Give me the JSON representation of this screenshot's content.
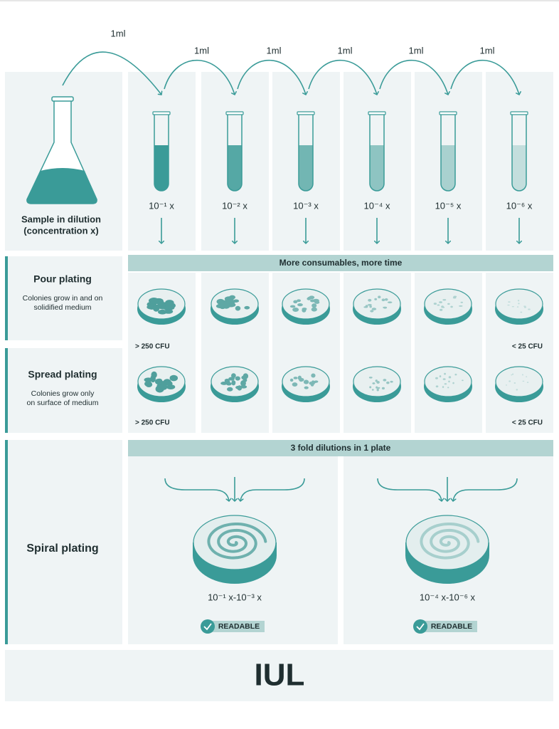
{
  "transfers": [
    "1ml",
    "1ml",
    "1ml",
    "1ml",
    "1ml",
    "1ml"
  ],
  "sample": {
    "lines": [
      "Sample in dilution",
      "(concentration x)"
    ]
  },
  "dilutions": [
    "10⁻¹ x",
    "10⁻² x",
    "10⁻³ x",
    "10⁻⁴ x",
    "10⁻⁵ x",
    "10⁻⁶ x"
  ],
  "banner_top": "More consumables, more time",
  "pour": {
    "title": "Pour plating",
    "lines": [
      "Colonies grow in and on",
      "solidified medium"
    ],
    "high": "> 250 CFU",
    "low": "< 25 CFU"
  },
  "spread": {
    "title": "Spread plating",
    "lines": [
      "Colonies grow only",
      "on surface of medium"
    ],
    "high": "> 250 CFU",
    "low": "< 25 CFU"
  },
  "banner_spiral": "3 fold dilutions in 1 plate",
  "spiral": {
    "title": "Spiral plating",
    "plates": [
      {
        "range": "10⁻¹ x-10⁻³ x",
        "badge": "READABLE"
      },
      {
        "range": "10⁻⁴ x-10⁻⁶ x",
        "badge": "READABLE"
      }
    ]
  },
  "logo": "IUL"
}
